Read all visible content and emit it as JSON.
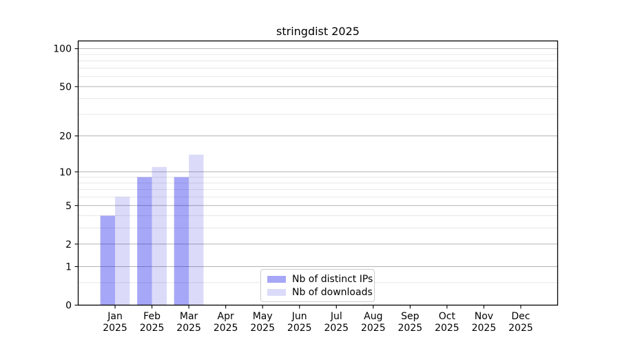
{
  "figure": {
    "background": "#ffffff"
  },
  "chart_data": {
    "type": "bar",
    "title": "stringdist 2025",
    "categories": [
      "Jan",
      "Feb",
      "Mar",
      "Apr",
      "May",
      "Jun",
      "Jul",
      "Aug",
      "Sep",
      "Oct",
      "Nov",
      "Dec"
    ],
    "category_year": "2025",
    "series": [
      {
        "name": "Nb of distinct IPs",
        "fill": "rgba(4,4,232,0.35)",
        "legend_color": "#a7a7f7",
        "values": [
          4,
          9,
          9,
          0,
          0,
          0,
          0,
          0,
          0,
          0,
          0,
          0
        ]
      },
      {
        "name": "Nb of downloads",
        "fill": "rgba(15,15,215,0.15)",
        "legend_color": "#dbdbf9",
        "values": [
          6,
          11,
          14,
          0,
          0,
          0,
          0,
          0,
          0,
          0,
          0,
          0
        ]
      }
    ],
    "y_axis": {
      "scale": "log1p",
      "tick_values": [
        0,
        1,
        2,
        5,
        10,
        20,
        50,
        100
      ],
      "minor_gridlines": [
        0.5,
        3,
        4,
        6,
        7,
        8,
        9,
        30,
        40,
        60,
        70,
        80,
        90
      ],
      "ylim": [
        0,
        115
      ]
    },
    "x_axis": {
      "xlim": [
        0,
        13
      ],
      "tick_positions": [
        1,
        2,
        3,
        4,
        5,
        6,
        7,
        8,
        9,
        10,
        11,
        12
      ]
    },
    "legend": {
      "position": "lower center"
    },
    "grid": true,
    "colors": {
      "major_grid": "#b3b3b3",
      "minor_grid": "#e7e7e7",
      "axis": "#000000"
    }
  }
}
